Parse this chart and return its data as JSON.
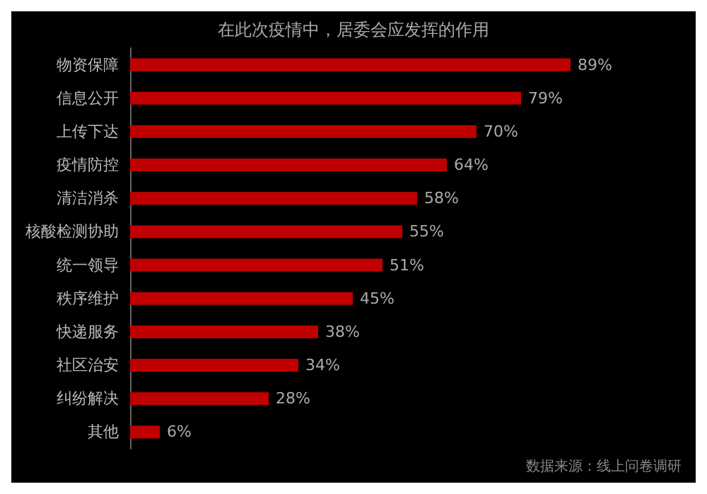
{
  "chart_data": {
    "type": "bar",
    "orientation": "horizontal",
    "title": "在此次疫情中，居委会应发挥的作用",
    "categories": [
      "物资保障",
      "信息公开",
      "上传下达",
      "疫情防控",
      "清洁消杀",
      "核酸检测协助",
      "统一领导",
      "秩序维护",
      "快递服务",
      "社区治安",
      "纠纷解决",
      "其他"
    ],
    "values": [
      89,
      79,
      70,
      64,
      58,
      55,
      51,
      45,
      38,
      34,
      28,
      6
    ],
    "value_labels": [
      "89%",
      "79%",
      "70%",
      "64%",
      "58%",
      "55%",
      "51%",
      "45%",
      "38%",
      "34%",
      "28%",
      "6%"
    ],
    "color": "#c00000",
    "annotations": [
      "数据来源：线上问卷调研"
    ]
  }
}
